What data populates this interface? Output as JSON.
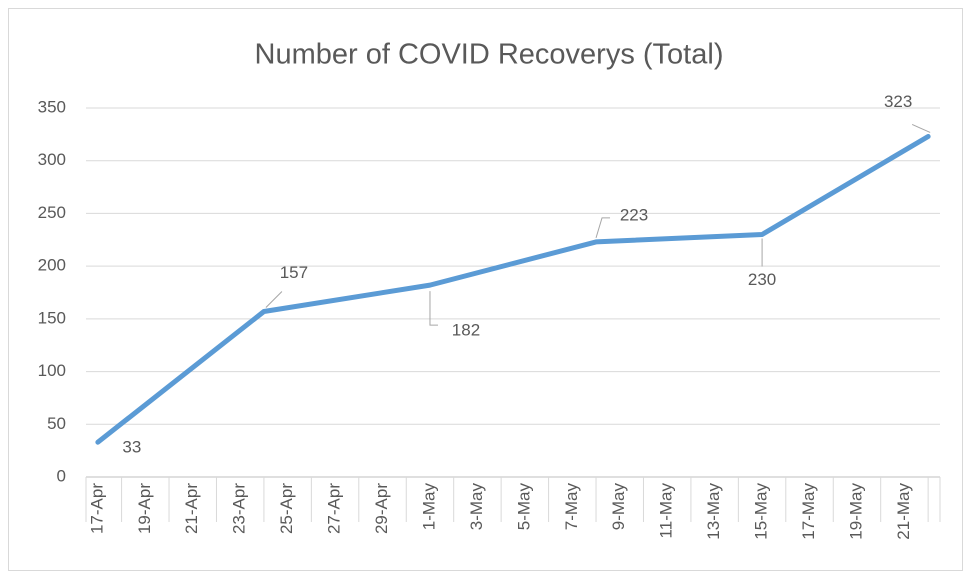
{
  "chart_data": {
    "type": "line",
    "title": "Number of COVID Recoverys (Total)",
    "categories": [
      "17-Apr",
      null,
      "19-Apr",
      null,
      "21-Apr",
      null,
      "23-Apr",
      null,
      "25-Apr",
      null,
      "27-Apr",
      null,
      "29-Apr",
      null,
      "1-May",
      null,
      "3-May",
      null,
      "5-May",
      null,
      "7-May",
      null,
      "9-May",
      null,
      "11-May",
      null,
      "13-May",
      null,
      "15-May",
      null,
      "17-May",
      null,
      "19-May",
      null,
      "21-May",
      null
    ],
    "series": [
      {
        "name": null,
        "color": "#5b9bd5",
        "values": [
          33,
          null,
          null,
          null,
          null,
          null,
          null,
          157,
          null,
          null,
          null,
          null,
          null,
          null,
          182,
          null,
          null,
          null,
          null,
          null,
          null,
          223,
          null,
          null,
          null,
          null,
          null,
          null,
          230,
          null,
          null,
          null,
          null,
          null,
          null,
          323
        ]
      }
    ],
    "connect_gaps": true,
    "ylim": [
      0,
      350
    ],
    "yticks": [
      0,
      50,
      100,
      150,
      200,
      250,
      300,
      350
    ],
    "grid": true
  }
}
